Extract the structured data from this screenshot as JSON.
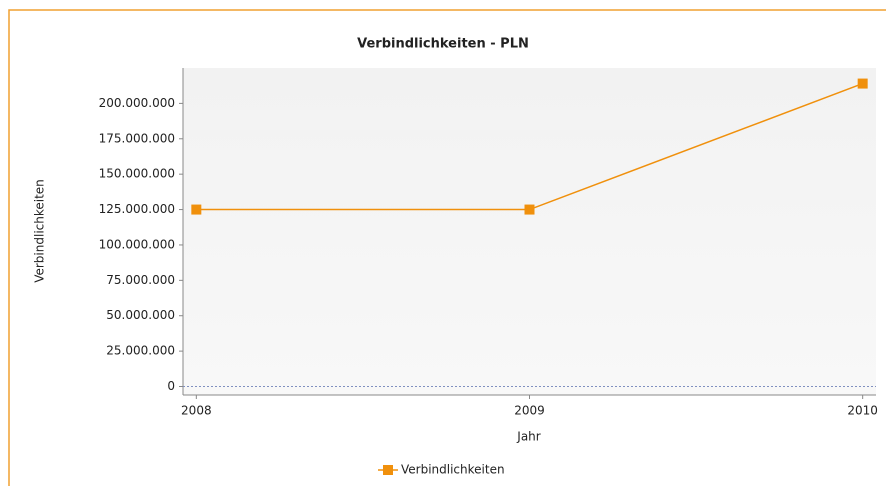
{
  "chart_data": {
    "type": "line",
    "title": "Verbindlichkeiten - PLN",
    "x_label": "Jahr",
    "y_label": "Verbindlichkeiten",
    "x": [
      2008,
      2009,
      2010
    ],
    "series": [
      {
        "name": "Verbindlichkeiten",
        "color": "#f0900c",
        "values": [
          125000000,
          125000000,
          214000000
        ]
      }
    ],
    "xlim": [
      2007.96,
      2010.04
    ],
    "xticks": [
      2008,
      2009,
      2010
    ],
    "ylim": [
      -6000000,
      225000000
    ],
    "yticks": [
      0,
      {
        "value": 25000000,
        "label": "25.000.000"
      },
      {
        "value": 50000000,
        "label": "50.000.000"
      },
      {
        "value": 75000000,
        "label": "75.000.000"
      },
      {
        "value": 100000000,
        "label": "100.000.000"
      },
      {
        "value": 125000000,
        "label": "125.000.000"
      },
      {
        "value": 150000000,
        "label": "150.000.000"
      },
      {
        "value": 175000000,
        "label": "175.000.000"
      },
      {
        "value": 200000000,
        "label": "200.000.000"
      }
    ],
    "legend": "bottom"
  }
}
